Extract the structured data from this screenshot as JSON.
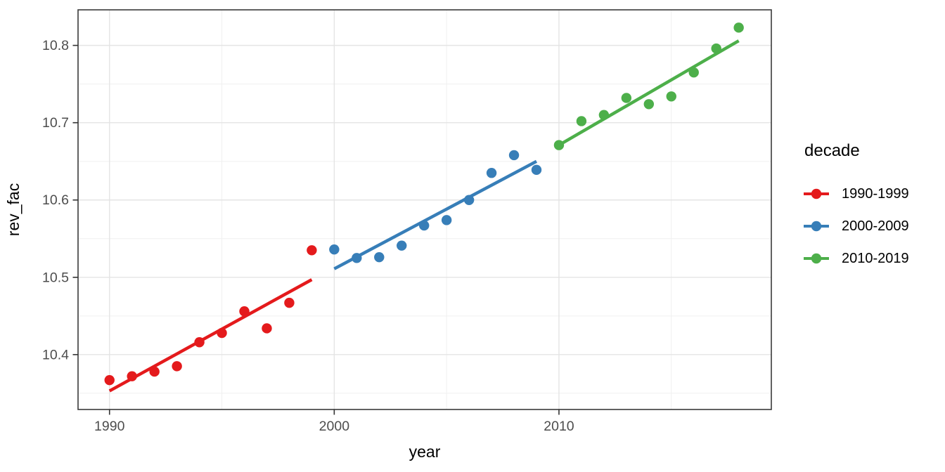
{
  "chart_data": {
    "type": "scatter",
    "title": "",
    "xlabel": "year",
    "ylabel": "rev_fac",
    "x_ticks": [
      1990,
      2000,
      2010
    ],
    "y_ticks": [
      10.4,
      10.5,
      10.6,
      10.7,
      10.8
    ],
    "xlim": [
      1988.6,
      2019.45
    ],
    "ylim": [
      10.329,
      10.846
    ],
    "grid": {
      "major_color": "#E4E4E4",
      "minor_color": "#F0F0F0"
    },
    "panel": {
      "background": "#FFFFFF",
      "border_color": "#3A3A3A"
    },
    "axis": {
      "tick_color": "#333333",
      "tick_label_color": "#4D4D4D",
      "title_color": "#000000"
    },
    "legend": {
      "title": "decade",
      "position": "right"
    },
    "series": [
      {
        "name": "1990-1999",
        "color": "#E41A1C",
        "x": [
          1990,
          1991,
          1992,
          1993,
          1994,
          1995,
          1996,
          1997,
          1998,
          1999
        ],
        "y": [
          10.367,
          10.372,
          10.378,
          10.385,
          10.416,
          10.428,
          10.456,
          10.434,
          10.467,
          10.535
        ],
        "trend": {
          "x": [
            1990,
            1999
          ],
          "y": [
            10.353,
            10.497
          ]
        }
      },
      {
        "name": "2000-2009",
        "color": "#377EB8",
        "x": [
          2000,
          2001,
          2002,
          2003,
          2004,
          2005,
          2006,
          2007,
          2008,
          2009
        ],
        "y": [
          10.536,
          10.525,
          10.526,
          10.541,
          10.567,
          10.574,
          10.6,
          10.635,
          10.658,
          10.639
        ],
        "trend": {
          "x": [
            2000,
            2009
          ],
          "y": [
            10.511,
            10.65
          ]
        }
      },
      {
        "name": "2010-2019",
        "color": "#4DAF4A",
        "x": [
          2010,
          2011,
          2012,
          2013,
          2014,
          2015,
          2016,
          2017,
          2018
        ],
        "y": [
          10.671,
          10.702,
          10.71,
          10.732,
          10.724,
          10.734,
          10.765,
          10.796,
          10.823
        ],
        "trend": {
          "x": [
            2010,
            2018
          ],
          "y": [
            10.671,
            10.806
          ]
        }
      }
    ]
  }
}
